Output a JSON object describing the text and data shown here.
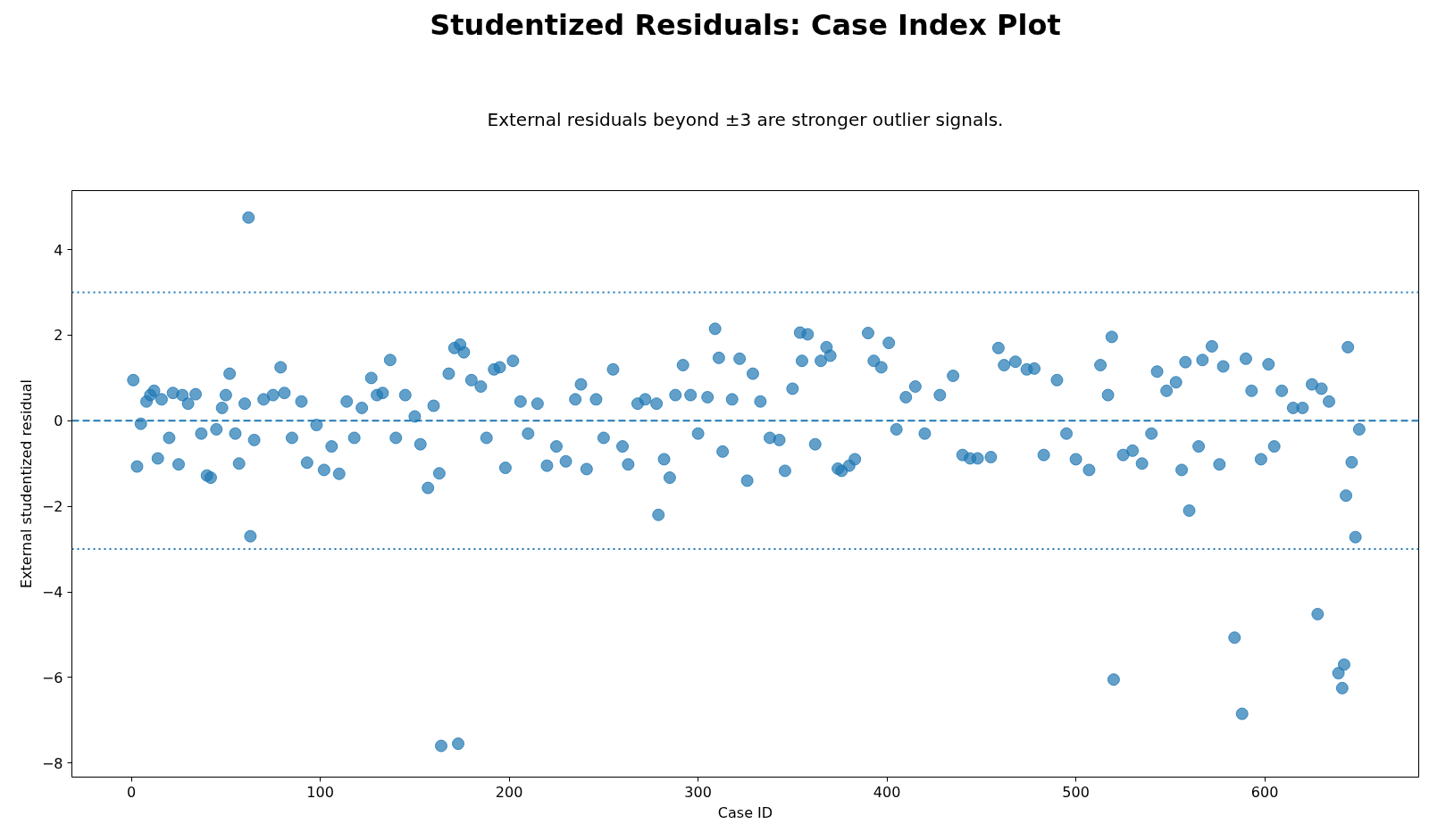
{
  "chart_data": {
    "type": "scatter",
    "title": "Studentized Residuals: Case Index Plot",
    "subtitle": "External residuals beyond ±3 are stronger outlier signals.",
    "xlabel": "Case ID",
    "ylabel": "External studentized residual",
    "x": [
      1,
      3,
      5,
      8,
      10,
      12,
      14,
      16,
      20,
      22,
      25,
      27,
      30,
      34,
      37,
      40,
      42,
      45,
      48,
      50,
      52,
      55,
      57,
      60,
      62,
      63,
      65,
      70,
      75,
      79,
      81,
      85,
      90,
      93,
      98,
      102,
      106,
      110,
      114,
      118,
      122,
      127,
      130,
      133,
      137,
      140,
      145,
      150,
      153,
      157,
      160,
      163,
      164,
      168,
      171,
      173,
      174,
      176,
      180,
      185,
      188,
      192,
      195,
      198,
      202,
      206,
      210,
      215,
      220,
      225,
      230,
      235,
      238,
      241,
      246,
      250,
      255,
      260,
      263,
      268,
      272,
      278,
      279,
      282,
      285,
      288,
      292,
      296,
      300,
      305,
      309,
      311,
      313,
      318,
      322,
      326,
      329,
      333,
      338,
      343,
      346,
      350,
      354,
      355,
      358,
      362,
      365,
      368,
      370,
      374,
      376,
      380,
      383,
      390,
      393,
      397,
      401,
      405,
      410,
      415,
      420,
      428,
      435,
      440,
      444,
      448,
      455,
      459,
      462,
      468,
      474,
      478,
      483,
      490,
      495,
      500,
      507,
      513,
      517,
      519,
      520,
      525,
      530,
      535,
      540,
      543,
      548,
      553,
      556,
      558,
      560,
      565,
      567,
      572,
      576,
      578,
      584,
      588,
      590,
      593,
      598,
      602,
      605,
      609,
      615,
      620,
      625,
      628,
      630,
      634,
      639,
      641,
      642,
      643,
      644,
      646,
      648,
      650
    ],
    "series": [
      {
        "color": "#1f77b4",
        "values": [
          0.95,
          -1.07,
          -0.07,
          0.45,
          0.6,
          0.7,
          -0.88,
          0.5,
          -0.4,
          0.65,
          -1.02,
          0.6,
          0.4,
          0.62,
          -0.3,
          -1.28,
          -1.33,
          -0.2,
          0.3,
          0.6,
          1.1,
          -0.3,
          -1.0,
          0.4,
          4.75,
          -2.7,
          -0.45,
          0.5,
          0.6,
          1.25,
          0.65,
          -0.4,
          0.45,
          -0.98,
          -0.1,
          -1.15,
          -0.6,
          -1.24,
          0.45,
          -0.4,
          0.3,
          1.0,
          0.6,
          0.65,
          1.42,
          -0.4,
          0.6,
          0.1,
          -0.55,
          -1.57,
          0.35,
          -1.23,
          -7.6,
          1.1,
          1.7,
          -7.55,
          1.78,
          1.6,
          0.95,
          0.8,
          -0.4,
          1.2,
          1.25,
          -1.1,
          1.4,
          0.45,
          -0.3,
          0.4,
          -1.05,
          -0.6,
          -0.95,
          0.5,
          0.85,
          -1.13,
          0.5,
          -0.4,
          1.2,
          -0.6,
          -1.02,
          0.4,
          0.5,
          0.4,
          -2.2,
          -0.9,
          -1.33,
          0.6,
          1.3,
          0.6,
          -0.3,
          0.55,
          2.15,
          1.47,
          -0.72,
          0.5,
          1.45,
          -1.4,
          1.1,
          0.45,
          -0.4,
          -0.45,
          -1.17,
          0.75,
          2.06,
          1.4,
          2.02,
          -0.55,
          1.4,
          1.72,
          1.52,
          -1.12,
          -1.17,
          -1.05,
          -0.9,
          2.05,
          1.4,
          1.25,
          1.82,
          -0.2,
          0.55,
          0.8,
          -0.3,
          0.6,
          1.05,
          -0.8,
          -0.88,
          -0.88,
          -0.85,
          1.7,
          1.3,
          1.38,
          1.2,
          1.22,
          -0.8,
          0.95,
          -0.3,
          -0.9,
          -1.15,
          1.3,
          0.6,
          1.96,
          -6.05,
          -0.8,
          -0.7,
          -1.0,
          -0.3,
          1.15,
          0.7,
          0.9,
          -1.15,
          1.37,
          -2.1,
          -0.6,
          1.42,
          1.74,
          -1.02,
          1.27,
          -5.07,
          -6.85,
          1.45,
          0.7,
          -0.9,
          1.32,
          -0.6,
          0.7,
          0.3,
          0.3,
          0.85,
          -4.52,
          0.75,
          0.45,
          -5.9,
          -6.25,
          -5.7,
          -1.75,
          1.72,
          -0.97,
          -2.72,
          -0.2
        ]
      }
    ],
    "xlim": [
      -31.5,
      681.5
    ],
    "ylim": [
      -8.33,
      5.38
    ],
    "xticks": [
      0,
      100,
      200,
      300,
      400,
      500,
      600
    ],
    "yticks": [
      -8,
      -6,
      -4,
      -2,
      0,
      2,
      4
    ],
    "ref_lines": [
      {
        "axis": "y",
        "value": 0,
        "color": "#1f77b4",
        "line_style": "dashed"
      },
      {
        "axis": "y",
        "value": 3,
        "color": "#1f77b4",
        "line_style": "dotted"
      },
      {
        "axis": "y",
        "value": -3,
        "color": "#1f77b4",
        "line_style": "dotted"
      }
    ],
    "marker": "circle",
    "grid": false
  }
}
